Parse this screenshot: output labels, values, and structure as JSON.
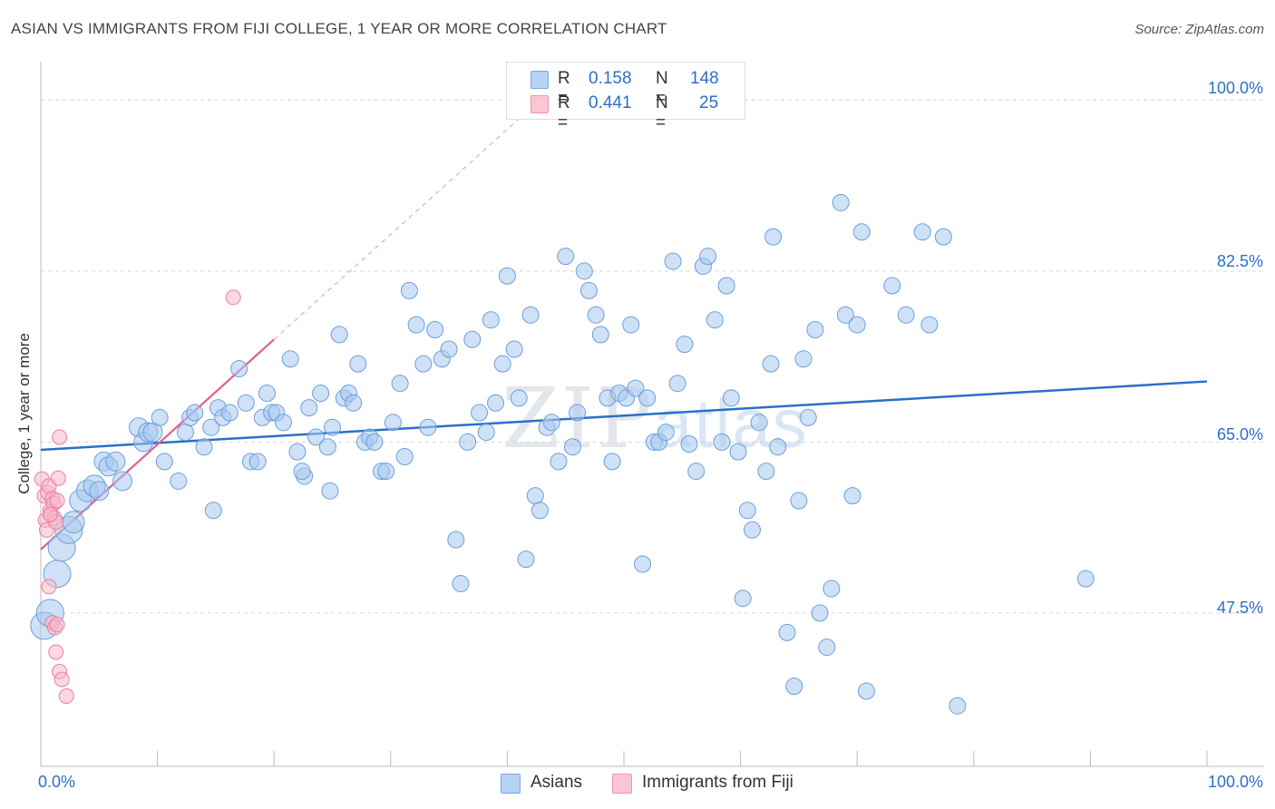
{
  "header": {
    "title": "ASIAN VS IMMIGRANTS FROM FIJI COLLEGE, 1 YEAR OR MORE CORRELATION CHART",
    "source": "Source: ZipAtlas.com"
  },
  "watermark": {
    "zip": "ZIP",
    "atlas": "atlas"
  },
  "legend": {
    "rows": [
      {
        "r_label": "R =",
        "r_value": "0.158",
        "n_label": "N =",
        "n_value": "148",
        "color": "#9ec3ef"
      },
      {
        "r_label": "R =",
        "r_value": "0.441",
        "n_label": "N =",
        "n_value": "25",
        "color": "#f6b6c8"
      }
    ]
  },
  "colors": {
    "asian_fill": "#a8c8ee",
    "asian_stroke": "#6b9fdb",
    "asian_line": "#2a6fcb",
    "fiji_fill": "#f7b8cb",
    "fiji_stroke": "#ea7fa0",
    "fiji_line": "#e0608a",
    "tick_text": "#2d6fc7",
    "grid": "#d8d8d8"
  },
  "chart_data": {
    "type": "scatter",
    "title": "ASIAN VS IMMIGRANTS FROM FIJI COLLEGE, 1 YEAR OR MORE CORRELATION CHART",
    "xlabel": "",
    "ylabel": "College, 1 year or more",
    "xlim": [
      0,
      100
    ],
    "ylim": [
      31.8,
      103
    ],
    "x_tick_labels": [
      "0.0%",
      "100.0%"
    ],
    "y_ticks": [
      47.5,
      65.0,
      82.5,
      100.0
    ],
    "y_tick_labels": [
      "47.5%",
      "65.0%",
      "82.5%",
      "100.0%"
    ],
    "grid": "horizontal dashed",
    "legend_position": "bottom-center",
    "series": [
      {
        "name": "Asians",
        "R": 0.158,
        "N": 148,
        "trend": {
          "x": [
            0,
            100
          ],
          "y": [
            64.2,
            71.2
          ]
        },
        "points": [
          [
            0.3,
            46.2
          ],
          [
            0.8,
            47.5
          ],
          [
            1.4,
            51.5
          ],
          [
            1.8,
            54.2
          ],
          [
            2.4,
            56.0
          ],
          [
            2.8,
            56.8
          ],
          [
            3.4,
            59.0
          ],
          [
            4.0,
            60.0
          ],
          [
            4.6,
            60.5
          ],
          [
            5.0,
            60.0
          ],
          [
            5.4,
            63.0
          ],
          [
            5.8,
            62.5
          ],
          [
            6.4,
            63.0
          ],
          [
            7.0,
            61.0
          ],
          [
            8.4,
            66.5
          ],
          [
            8.8,
            65.0
          ],
          [
            9.2,
            66.0
          ],
          [
            9.6,
            66.0
          ],
          [
            10.2,
            67.5
          ],
          [
            10.6,
            63.0
          ],
          [
            11.8,
            61.0
          ],
          [
            12.4,
            66.0
          ],
          [
            12.8,
            67.5
          ],
          [
            13.2,
            68.0
          ],
          [
            14.0,
            64.5
          ],
          [
            14.6,
            66.5
          ],
          [
            14.8,
            58.0
          ],
          [
            15.2,
            68.5
          ],
          [
            15.6,
            67.5
          ],
          [
            16.2,
            68.0
          ],
          [
            17.0,
            72.5
          ],
          [
            17.6,
            69.0
          ],
          [
            18.0,
            63.0
          ],
          [
            18.6,
            63.0
          ],
          [
            19.0,
            67.5
          ],
          [
            19.4,
            70.0
          ],
          [
            19.8,
            68.0
          ],
          [
            20.2,
            68.0
          ],
          [
            20.8,
            67.0
          ],
          [
            21.4,
            73.5
          ],
          [
            22.0,
            64.0
          ],
          [
            22.6,
            61.5
          ],
          [
            23.0,
            68.5
          ],
          [
            23.6,
            65.5
          ],
          [
            24.0,
            70.0
          ],
          [
            24.6,
            64.5
          ],
          [
            25.0,
            66.5
          ],
          [
            25.6,
            76.0
          ],
          [
            26.0,
            69.5
          ],
          [
            26.4,
            70.0
          ],
          [
            26.8,
            69.0
          ],
          [
            27.2,
            73.0
          ],
          [
            27.8,
            65.0
          ],
          [
            28.2,
            65.5
          ],
          [
            28.6,
            65.0
          ],
          [
            29.2,
            62.0
          ],
          [
            29.6,
            62.0
          ],
          [
            30.2,
            67.0
          ],
          [
            30.8,
            71.0
          ],
          [
            31.2,
            63.5
          ],
          [
            31.6,
            80.5
          ],
          [
            32.2,
            77.0
          ],
          [
            32.8,
            73.0
          ],
          [
            33.2,
            66.5
          ],
          [
            33.8,
            76.5
          ],
          [
            34.4,
            73.5
          ],
          [
            35.0,
            74.5
          ],
          [
            35.6,
            55.0
          ],
          [
            36.0,
            50.5
          ],
          [
            36.6,
            65.0
          ],
          [
            37.0,
            75.5
          ],
          [
            37.6,
            68.0
          ],
          [
            38.2,
            66.0
          ],
          [
            38.6,
            77.5
          ],
          [
            39.0,
            69.0
          ],
          [
            39.6,
            73.0
          ],
          [
            40.0,
            82.0
          ],
          [
            40.6,
            74.5
          ],
          [
            41.0,
            69.5
          ],
          [
            41.6,
            53.0
          ],
          [
            42.0,
            78.0
          ],
          [
            42.4,
            59.5
          ],
          [
            42.8,
            58.0
          ],
          [
            43.4,
            66.5
          ],
          [
            43.8,
            67.0
          ],
          [
            44.4,
            63.0
          ],
          [
            45.0,
            84.0
          ],
          [
            45.6,
            64.5
          ],
          [
            46.0,
            68.0
          ],
          [
            46.6,
            82.5
          ],
          [
            47.0,
            80.5
          ],
          [
            47.6,
            78.0
          ],
          [
            48.0,
            76.0
          ],
          [
            48.6,
            69.5
          ],
          [
            49.0,
            63.0
          ],
          [
            49.6,
            70.0
          ],
          [
            50.2,
            69.5
          ],
          [
            50.6,
            77.0
          ],
          [
            51.0,
            70.5
          ],
          [
            51.6,
            52.5
          ],
          [
            52.0,
            69.5
          ],
          [
            52.6,
            65.0
          ],
          [
            53.0,
            65.0
          ],
          [
            53.6,
            66.0
          ],
          [
            54.2,
            83.5
          ],
          [
            54.6,
            71.0
          ],
          [
            55.2,
            75.0
          ],
          [
            55.6,
            64.8
          ],
          [
            56.2,
            62.0
          ],
          [
            56.8,
            83.0
          ],
          [
            57.2,
            84.0
          ],
          [
            57.8,
            77.5
          ],
          [
            58.4,
            65.0
          ],
          [
            58.8,
            81.0
          ],
          [
            59.2,
            69.5
          ],
          [
            59.8,
            64.0
          ],
          [
            60.2,
            49.0
          ],
          [
            60.6,
            58.0
          ],
          [
            61.0,
            56.0
          ],
          [
            61.6,
            67.0
          ],
          [
            62.2,
            62.0
          ],
          [
            62.6,
            73.0
          ],
          [
            62.8,
            86.0
          ],
          [
            63.2,
            64.5
          ],
          [
            64.0,
            45.5
          ],
          [
            64.6,
            40.0
          ],
          [
            65.0,
            59.0
          ],
          [
            65.4,
            73.5
          ],
          [
            65.8,
            67.5
          ],
          [
            66.4,
            76.5
          ],
          [
            66.8,
            47.5
          ],
          [
            67.4,
            44.0
          ],
          [
            67.8,
            50.0
          ],
          [
            68.6,
            89.5
          ],
          [
            69.0,
            78.0
          ],
          [
            69.6,
            59.5
          ],
          [
            70.0,
            77.0
          ],
          [
            70.4,
            86.5
          ],
          [
            70.8,
            39.5
          ],
          [
            73.0,
            81.0
          ],
          [
            74.2,
            78.0
          ],
          [
            75.6,
            86.5
          ],
          [
            76.2,
            77.0
          ],
          [
            77.4,
            86.0
          ],
          [
            78.6,
            38.0
          ],
          [
            89.6,
            51.0
          ],
          [
            22.4,
            62.0
          ],
          [
            24.8,
            60.0
          ]
        ]
      },
      {
        "name": "Immigrants from Fiji",
        "R": 0.441,
        "N": 25,
        "trend": {
          "x": [
            0,
            20
          ],
          "y": [
            54.0,
            75.5
          ]
        },
        "points": [
          [
            0.1,
            61.2
          ],
          [
            0.3,
            59.5
          ],
          [
            0.4,
            57.0
          ],
          [
            0.5,
            56.0
          ],
          [
            0.6,
            59.8
          ],
          [
            0.7,
            60.5
          ],
          [
            0.8,
            58.0
          ],
          [
            0.9,
            57.5
          ],
          [
            1.0,
            59.2
          ],
          [
            1.1,
            58.7
          ],
          [
            1.2,
            57.2
          ],
          [
            1.3,
            56.8
          ],
          [
            1.4,
            59.0
          ],
          [
            1.5,
            61.3
          ],
          [
            1.6,
            65.5
          ],
          [
            0.7,
            50.2
          ],
          [
            1.0,
            46.5
          ],
          [
            1.2,
            46.0
          ],
          [
            1.3,
            43.5
          ],
          [
            1.4,
            46.3
          ],
          [
            1.6,
            41.5
          ],
          [
            1.8,
            40.7
          ],
          [
            2.2,
            39.0
          ],
          [
            16.5,
            79.8
          ],
          [
            0.8,
            57.6
          ]
        ]
      }
    ]
  }
}
